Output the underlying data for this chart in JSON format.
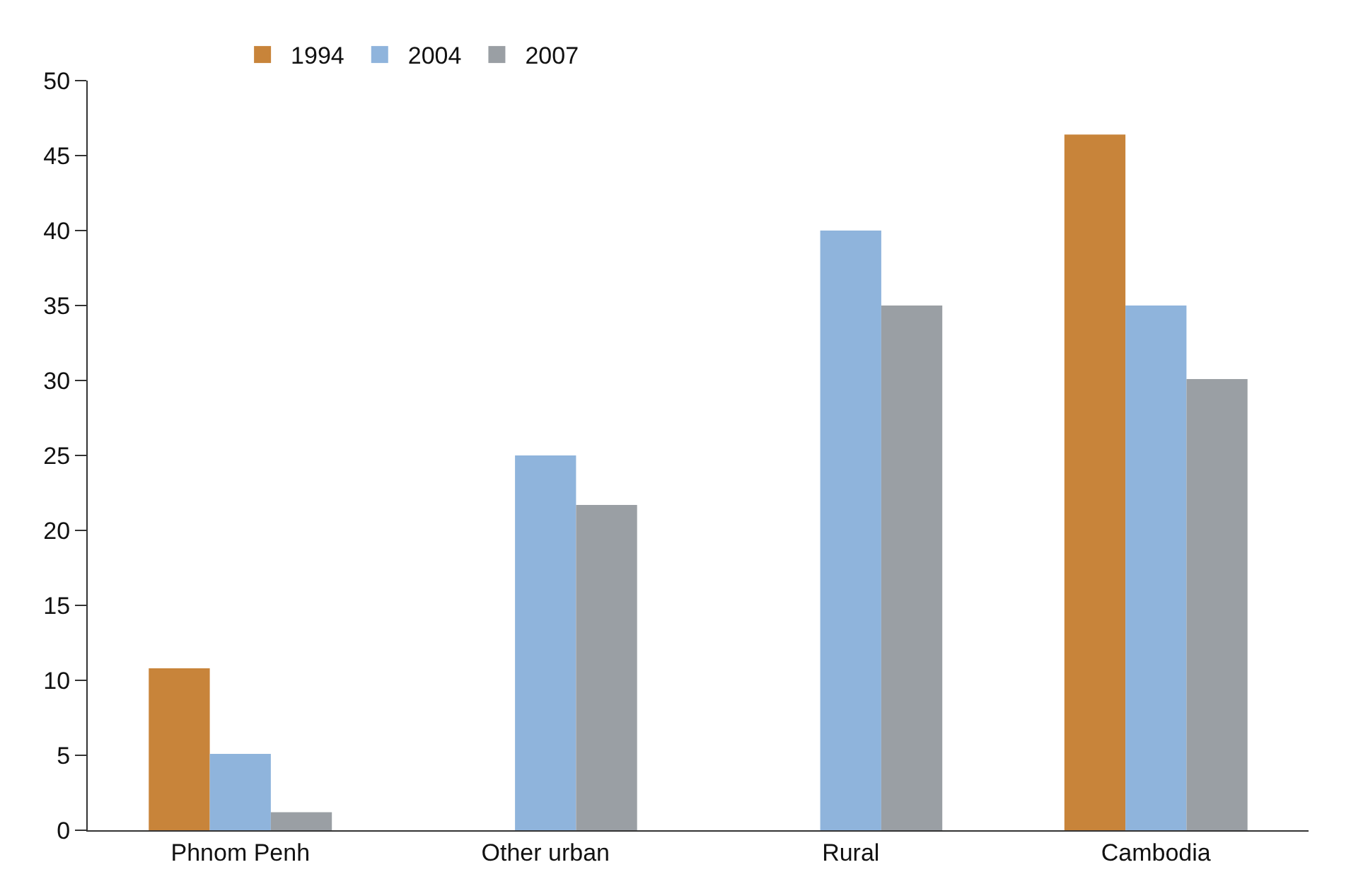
{
  "chart_data": {
    "type": "bar",
    "categories": [
      "Phnom Penh",
      "Other urban",
      "Rural",
      "Cambodia"
    ],
    "series": [
      {
        "name": "1994",
        "color": "#c8843a",
        "values": [
          10.8,
          null,
          null,
          46.4
        ]
      },
      {
        "name": "2004",
        "color": "#8fb4dc",
        "values": [
          5.1,
          25.0,
          40.0,
          35.0
        ]
      },
      {
        "name": "2007",
        "color": "#9a9fa4",
        "values": [
          1.2,
          21.7,
          35.0,
          30.1
        ]
      }
    ],
    "ylim": [
      0,
      50
    ],
    "yticks": [
      0,
      5,
      10,
      15,
      20,
      25,
      30,
      35,
      40,
      45,
      50
    ],
    "legend": "top left"
  }
}
